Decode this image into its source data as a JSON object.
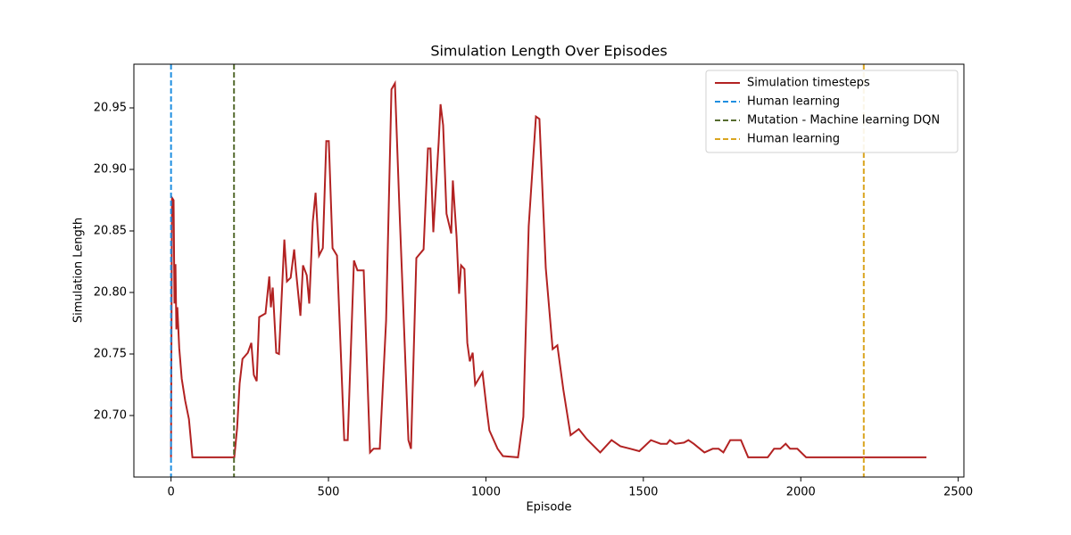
{
  "chart_data": {
    "type": "line",
    "title": "Simulation Length Over Episodes",
    "xlabel": "Episode",
    "ylabel": "Simulation Length",
    "xlim": [
      -118,
      2518
    ],
    "ylim": [
      20.65,
      20.9855
    ],
    "xticks": [
      0,
      500,
      1000,
      1500,
      2000,
      2500
    ],
    "yticks": [
      {
        "value": 20.7,
        "label": "20.70"
      },
      20.75,
      {
        "value": 20.8,
        "label": "20.80"
      },
      20.85,
      {
        "value": 20.9,
        "label": "20.90"
      },
      20.95
    ],
    "legend": "upper right",
    "series": [
      {
        "name": "Simulation timesteps",
        "color": "#b22222",
        "x": [
          0,
          3,
          8,
          11,
          14,
          17,
          20,
          26,
          34,
          45,
          57,
          62,
          68,
          201,
          210,
          218,
          227,
          244,
          255,
          263,
          272,
          280,
          300,
          312,
          317,
          323,
          334,
          343,
          360,
          368,
          380,
          391,
          397,
          411,
          419,
          431,
          439,
          450,
          459,
          470,
          482,
          493,
          501,
          513,
          527,
          550,
          561,
          581,
          592,
          612,
          632,
          643,
          663,
          683,
          700,
          711,
          725,
          754,
          762,
          779,
          802,
          816,
          824,
          833,
          850,
          856,
          864,
          875,
          890,
          895,
          907,
          915,
          921,
          932,
          941,
          949,
          958,
          966,
          989,
          1003,
          1011,
          1037,
          1054,
          1102,
          1119,
          1136,
          1159,
          1170,
          1190,
          1212,
          1227,
          1246,
          1269,
          1295,
          1320,
          1363,
          1399,
          1427,
          1459,
          1487,
          1524,
          1555,
          1575,
          1584,
          1601,
          1629,
          1643,
          1660,
          1694,
          1720,
          1739,
          1754,
          1776,
          1810,
          1833,
          1895,
          1915,
          1935,
          1952,
          1966,
          1989,
          2017,
          2399
        ],
        "values": [
          20.666,
          20.877,
          20.875,
          20.791,
          20.823,
          20.77,
          20.788,
          20.755,
          20.73,
          20.712,
          20.697,
          20.683,
          20.666,
          20.666,
          20.69,
          20.726,
          20.746,
          20.751,
          20.759,
          20.733,
          20.728,
          20.78,
          20.783,
          20.813,
          20.788,
          20.804,
          20.751,
          20.75,
          20.843,
          20.809,
          20.812,
          20.835,
          20.817,
          20.781,
          20.822,
          20.814,
          20.791,
          20.857,
          20.881,
          20.83,
          20.836,
          20.923,
          20.923,
          20.836,
          20.83,
          20.68,
          20.68,
          20.826,
          20.818,
          20.818,
          20.67,
          20.673,
          20.673,
          20.777,
          20.965,
          20.97,
          20.871,
          20.68,
          20.673,
          20.828,
          20.835,
          20.917,
          20.917,
          20.849,
          20.922,
          20.953,
          20.936,
          20.864,
          20.848,
          20.891,
          20.845,
          20.799,
          20.822,
          20.819,
          20.759,
          20.744,
          20.751,
          20.725,
          20.735,
          20.704,
          20.688,
          20.673,
          20.667,
          20.666,
          20.699,
          20.854,
          20.943,
          20.941,
          20.82,
          20.754,
          20.757,
          20.721,
          20.684,
          20.689,
          20.681,
          20.67,
          20.68,
          20.675,
          20.673,
          20.671,
          20.68,
          20.677,
          20.677,
          20.68,
          20.677,
          20.678,
          20.68,
          20.677,
          20.67,
          20.673,
          20.673,
          20.67,
          20.68,
          20.68,
          20.666,
          20.666,
          20.673,
          20.673,
          20.677,
          20.673,
          20.673,
          20.666,
          20.666
        ]
      }
    ],
    "vlines": [
      {
        "name": "Human learning",
        "color": "#1f8fe0",
        "x": 0
      },
      {
        "name": "Mutation - Machine learning DQN",
        "color": "#556b2f",
        "x": 200
      },
      {
        "name": "Human learning",
        "color": "#daa520",
        "x": 2200
      }
    ]
  }
}
